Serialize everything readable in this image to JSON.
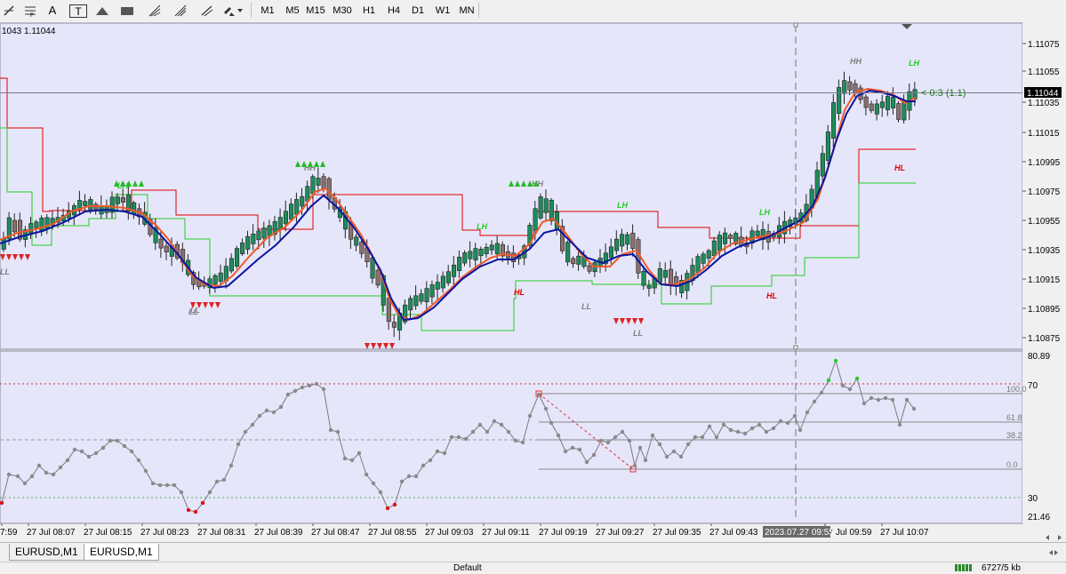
{
  "toolbar": {
    "tools": [
      {
        "name": "cursor-cross-icon"
      },
      {
        "name": "fibo-fan-icon"
      },
      {
        "name": "text-tool-icon",
        "label": "A"
      },
      {
        "name": "text-label-icon",
        "label": "T"
      },
      {
        "name": "triangle-icon"
      },
      {
        "name": "rectangle-icon"
      },
      {
        "name": "fibo-arcs-icon"
      },
      {
        "name": "pitchfork-icon"
      },
      {
        "name": "arrows-icon"
      }
    ],
    "timeframes": [
      "M1",
      "M5",
      "M15",
      "M30",
      "H1",
      "H4",
      "D1",
      "W1",
      "MN"
    ]
  },
  "chart": {
    "info": "1043 1.11044",
    "current_price": "1.11044",
    "price_annotation": "< 0:3 (1.1)",
    "price_ticks": [
      "1.11075",
      "1.11055",
      "1.11044",
      "1.11035",
      "1.11015",
      "1.10995",
      "1.10975",
      "1.10955",
      "1.10935",
      "1.10915",
      "1.10895",
      "1.10875"
    ],
    "swing_labels": [
      {
        "text": "LL",
        "color": "#808080"
      },
      {
        "text": "LH",
        "color": "#22cc22"
      },
      {
        "text": "LL",
        "color": "#808080"
      },
      {
        "text": "HH",
        "color": "#808080"
      },
      {
        "text": "LL",
        "color": "#808080"
      },
      {
        "text": "LH",
        "color": "#22cc22"
      },
      {
        "text": "HH",
        "color": "#808080"
      },
      {
        "text": "HL",
        "color": "#dd0000"
      },
      {
        "text": "LH",
        "color": "#22cc22"
      },
      {
        "text": "LL",
        "color": "#808080"
      },
      {
        "text": "LL",
        "color": "#808080"
      },
      {
        "text": "LH",
        "color": "#22cc22"
      },
      {
        "text": "HL",
        "color": "#dd0000"
      },
      {
        "text": "HH",
        "color": "#808080"
      },
      {
        "text": "HL",
        "color": "#dd0000"
      },
      {
        "text": "LH",
        "color": "#22cc22"
      }
    ]
  },
  "indicator": {
    "max_label": "80.89",
    "min_label": "21.46",
    "level_70": "70",
    "level_30": "30",
    "fibo_levels": [
      "100.0",
      "61.8",
      "38.2",
      "0.0"
    ]
  },
  "time_axis": {
    "labels": [
      "7:59",
      "27 Jul 08:07",
      "27 Jul 08:15",
      "27 Jul 08:23",
      "27 Jul 08:31",
      "27 Jul 08:39",
      "27 Jul 08:47",
      "27 Jul 08:55",
      "27 Jul 09:03",
      "27 Jul 09:11",
      "27 Jul 09:19",
      "27 Jul 09:27",
      "27 Jul 09:35",
      "27 Jul 09:43",
      "27 Jul 09:59",
      "27 Jul 10:07"
    ],
    "highlight": "2023.07.27 09:55"
  },
  "tabs": [
    "EURUSD,M1",
    "EURUSD,M1"
  ],
  "status": {
    "profile": "Default",
    "traffic": "6727/5 kb"
  },
  "colors": {
    "chart_bg": "#e6e6fa",
    "bull": "#1e8c5a",
    "bear": "#8a7070",
    "fast_ma": "#f05a28",
    "slow_ma": "#0a14a0",
    "upper_line": "#dd0000",
    "lower_line": "#22cc22"
  }
}
